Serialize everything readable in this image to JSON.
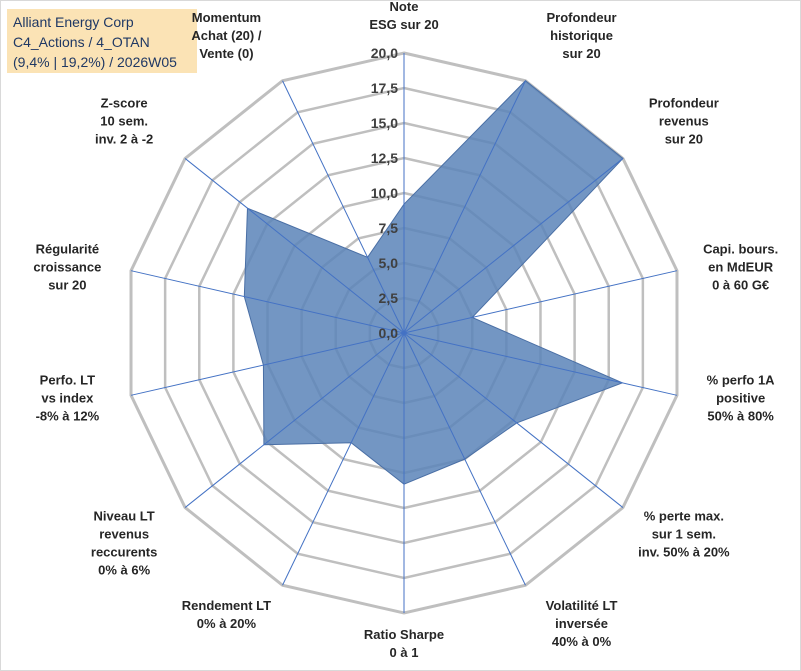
{
  "header": {
    "line1": "Alliant Energy Corp",
    "line2": "C4_Actions / 4_OTAN",
    "line3": "(9,4% | 19,2%) / 2026W05"
  },
  "colors": {
    "area": "#5b84b8",
    "grid": "#bfbfbf",
    "spoke": "#4472c4",
    "title_bg": "#fbe3b5",
    "title_text": "#1f3864"
  },
  "chart_data": {
    "type": "radar",
    "rmin": 0,
    "rmax": 20,
    "tick_step": 2.5,
    "tick_labels": [
      "0,0",
      "2,5",
      "5,0",
      "7,5",
      "10,0",
      "12,5",
      "15,0",
      "17,5",
      "20,0"
    ],
    "axes": [
      {
        "label": [
          "Note",
          "ESG sur 20"
        ],
        "value": 9.2
      },
      {
        "label": [
          "Profondeur",
          "historique",
          "sur 20"
        ],
        "value": 20.0
      },
      {
        "label": [
          "Profondeur",
          "revenus",
          "sur 20"
        ],
        "value": 20.0
      },
      {
        "label": [
          "Capi. bours.",
          "en MdEUR",
          "0 à 60 G€"
        ],
        "value": 5.0
      },
      {
        "label": [
          "% perfo 1A",
          "positive",
          "50% à 80%"
        ],
        "value": 16.0
      },
      {
        "label": [
          "% perte max.",
          "sur 1 sem.",
          "inv. 50% à 20%"
        ],
        "value": 10.3
      },
      {
        "label": [
          "Volatilité LT",
          "inversée",
          "40% à 0%"
        ],
        "value": 10.0
      },
      {
        "label": [
          "Ratio Sharpe",
          "0 à 1"
        ],
        "value": 10.8
      },
      {
        "label": [
          "Rendement LT",
          "0% à 20%"
        ],
        "value": 8.7
      },
      {
        "label": [
          "Niveau LT",
          "revenus",
          "reccurents",
          "0% à 6%"
        ],
        "value": 12.8
      },
      {
        "label": [
          "Perfo. LT",
          "vs index",
          "-8% à 12%"
        ],
        "value": 10.3
      },
      {
        "label": [
          "Régularité",
          "croissance",
          "sur 20"
        ],
        "value": 11.7
      },
      {
        "label": [
          "Z-score",
          "10 sem.",
          "inv. 2 à -2"
        ],
        "value": 14.3
      },
      {
        "label": [
          "Momentum",
          "Achat (20) /",
          "Vente (0)"
        ],
        "value": 6.0
      }
    ]
  }
}
